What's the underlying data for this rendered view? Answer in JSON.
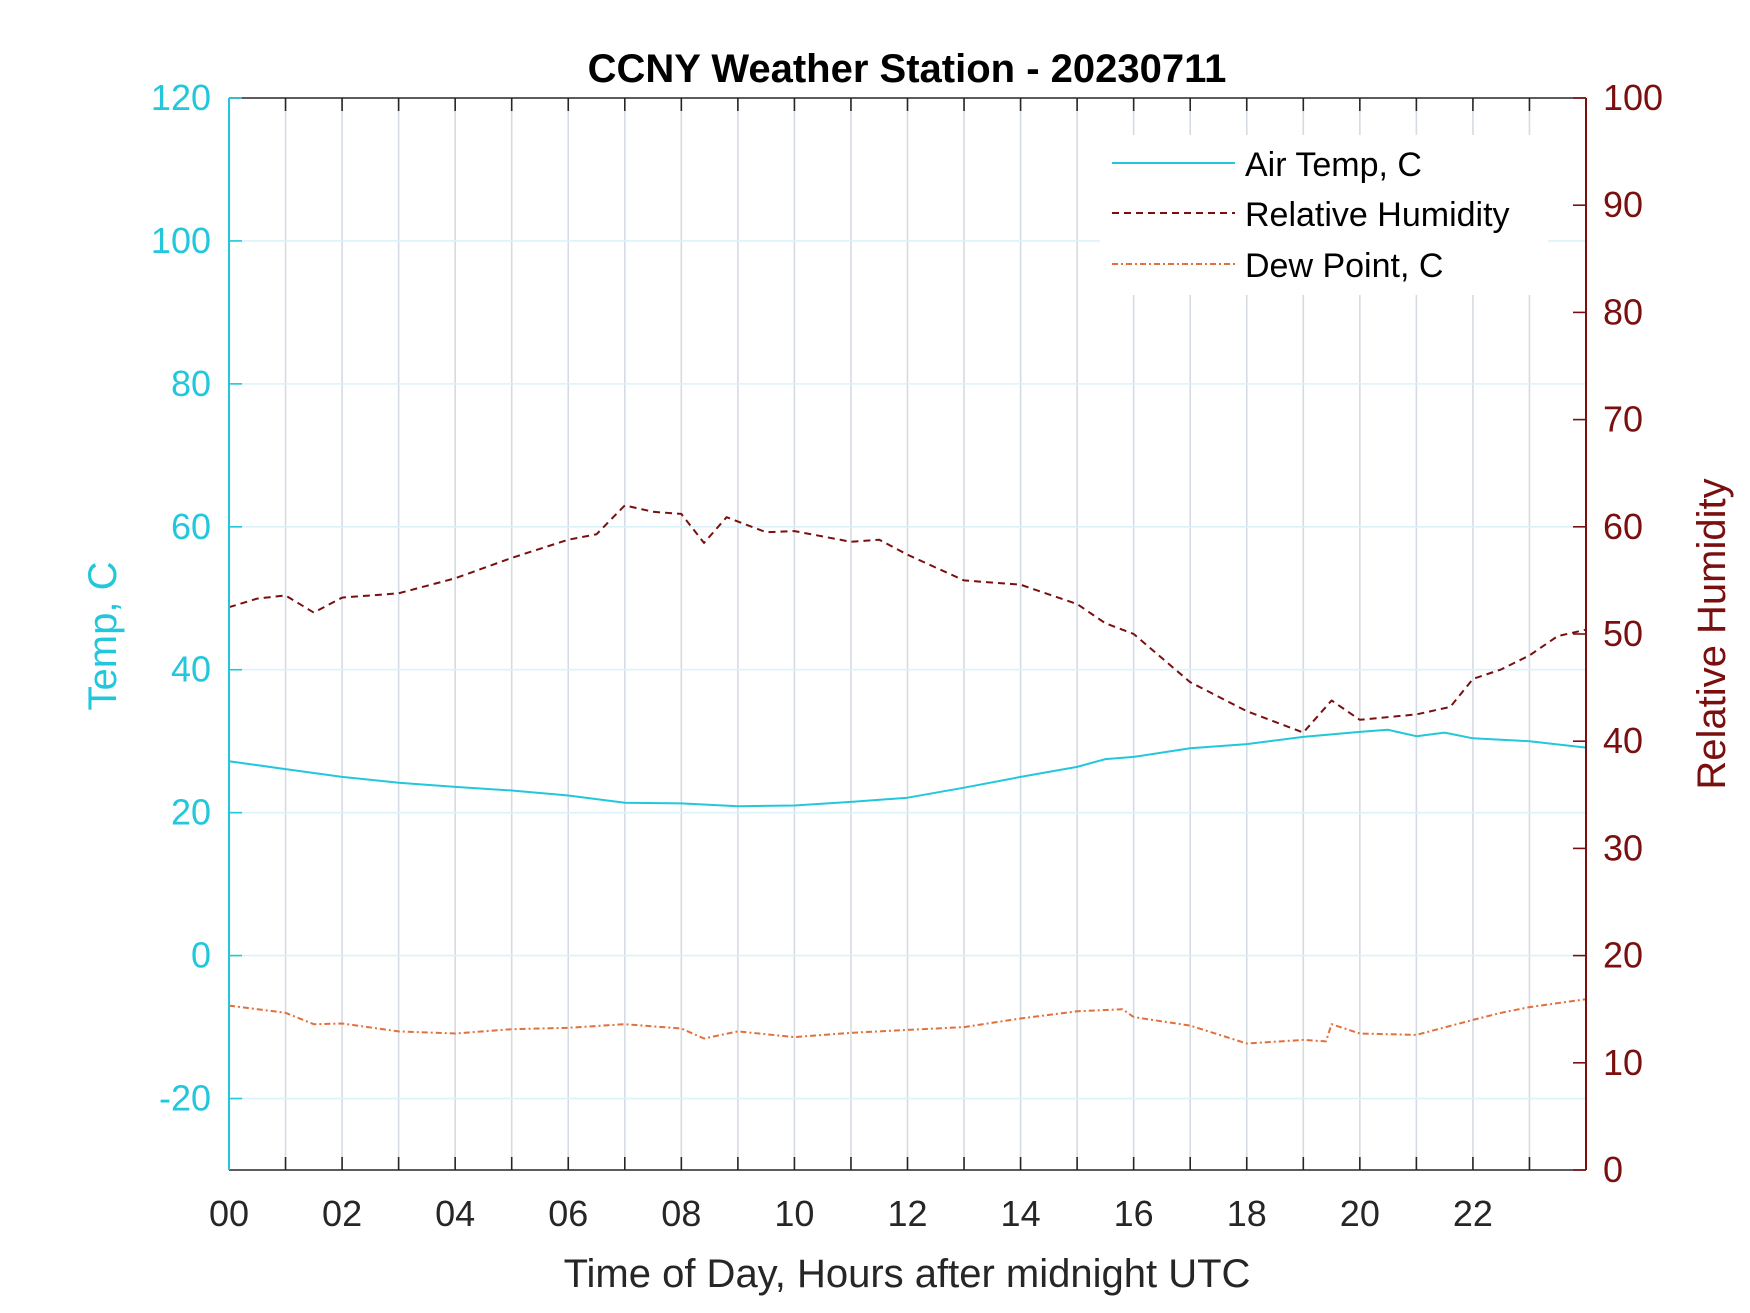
{
  "chart_data": {
    "type": "line",
    "title": "CCNY Weather Station - 20230711",
    "xlabel": "Time of Day, Hours after midnight UTC",
    "ylabel_left": "Temp, C",
    "ylabel_right": "Relative Humidity",
    "xlim": [
      0,
      24
    ],
    "ylim_left": [
      -30,
      120
    ],
    "ylim_right": [
      0,
      100
    ],
    "x_ticks": [
      0,
      2,
      4,
      6,
      8,
      10,
      12,
      14,
      16,
      18,
      20,
      22
    ],
    "x_tick_labels": [
      "00",
      "02",
      "04",
      "06",
      "08",
      "10",
      "12",
      "14",
      "16",
      "18",
      "20",
      "22"
    ],
    "y_ticks_left": [
      -20,
      0,
      20,
      40,
      60,
      80,
      100,
      120
    ],
    "y_ticks_right": [
      0,
      10,
      20,
      30,
      40,
      50,
      60,
      70,
      80,
      90,
      100
    ],
    "grid": true,
    "legend_position": "top-right",
    "colors": {
      "air_temp": "#22c7dc",
      "humidity": "#7a0f0f",
      "dew_point": "#e2703a"
    },
    "series": [
      {
        "name": "Air Temp, C",
        "axis": "left",
        "style": "solid",
        "x": [
          0,
          1,
          2,
          3,
          4,
          5,
          6,
          7,
          8,
          9,
          10,
          11,
          12,
          13,
          14,
          15,
          15.5,
          16,
          17,
          18,
          19,
          20,
          20.5,
          21,
          21.5,
          22,
          23,
          24
        ],
        "values": [
          27.2,
          26.1,
          25.0,
          24.2,
          23.6,
          23.1,
          22.4,
          21.4,
          21.3,
          20.9,
          21.0,
          21.5,
          22.1,
          23.5,
          25.0,
          26.4,
          27.5,
          27.8,
          29.0,
          29.6,
          30.6,
          31.3,
          31.6,
          30.7,
          31.2,
          30.4,
          30.0,
          29.1
        ]
      },
      {
        "name": "Relative Humidity",
        "axis": "right",
        "style": "dashed",
        "x": [
          0,
          0.5,
          1,
          1.5,
          2,
          3,
          4,
          5,
          6,
          6.5,
          7,
          7.5,
          8,
          8.4,
          8.8,
          9.5,
          10,
          11,
          11.5,
          12,
          13,
          14,
          15,
          15.5,
          16,
          17,
          18,
          19,
          19.5,
          20,
          21,
          21.6,
          22,
          22.5,
          23,
          23.5,
          24
        ],
        "values": [
          52.5,
          53.3,
          53.6,
          52.0,
          53.4,
          53.8,
          55.2,
          57.1,
          58.8,
          59.3,
          62.0,
          61.4,
          61.2,
          58.5,
          60.9,
          59.5,
          59.6,
          58.6,
          58.8,
          57.4,
          55.0,
          54.6,
          52.8,
          51.0,
          50.0,
          45.5,
          42.8,
          40.8,
          43.8,
          42.0,
          42.5,
          43.2,
          45.8,
          46.7,
          48.0,
          49.8,
          50.4
        ]
      },
      {
        "name": "Dew Point, C",
        "axis": "left",
        "style": "dash-dot",
        "x": [
          0,
          1,
          1.5,
          2,
          3,
          4,
          5,
          6,
          7,
          8,
          8.4,
          9,
          10,
          11,
          12,
          13,
          14,
          15,
          15.8,
          16,
          17,
          18,
          19,
          19.4,
          19.5,
          20,
          21,
          22,
          22.5,
          23,
          24
        ],
        "values": [
          -7.0,
          -8.0,
          -9.6,
          -9.5,
          -10.6,
          -10.9,
          -10.3,
          -10.1,
          -9.6,
          -10.2,
          -11.6,
          -10.6,
          -11.4,
          -10.8,
          -10.4,
          -10.0,
          -8.8,
          -7.8,
          -7.5,
          -8.6,
          -9.8,
          -12.3,
          -11.8,
          -12.0,
          -9.6,
          -10.9,
          -11.1,
          -9.0,
          -8.0,
          -7.2,
          -6.1
        ]
      }
    ]
  }
}
